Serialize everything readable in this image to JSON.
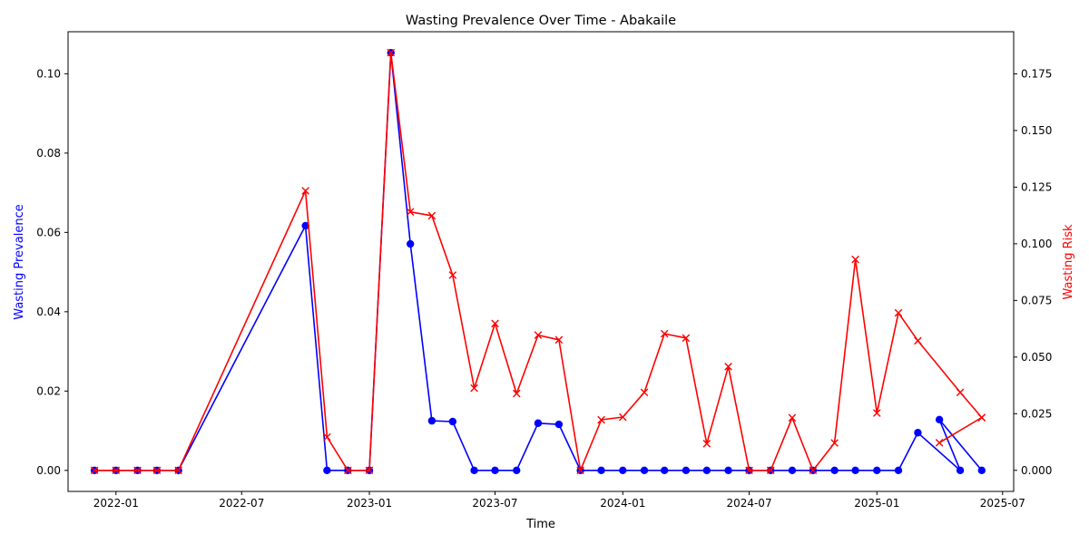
{
  "chart_data": {
    "type": "line",
    "title": "Wasting Prevalence Over Time - Abakaile",
    "xlabel": "Time",
    "ylabel_left": "Wasting Prevalence",
    "ylabel_right": "Wasting Risk",
    "xlim": [
      "2021-10-24",
      "2025-07-17"
    ],
    "ylim_left": [
      -0.0053,
      0.1106
    ],
    "ylim_right": [
      -0.0093,
      0.1936
    ],
    "x_ticks": [
      {
        "date": "2022-01-01",
        "label": "2022-01"
      },
      {
        "date": "2022-07-01",
        "label": "2022-07"
      },
      {
        "date": "2023-01-01",
        "label": "2023-01"
      },
      {
        "date": "2023-07-01",
        "label": "2023-07"
      },
      {
        "date": "2024-01-01",
        "label": "2024-01"
      },
      {
        "date": "2024-07-01",
        "label": "2024-07"
      },
      {
        "date": "2025-01-01",
        "label": "2025-01"
      },
      {
        "date": "2025-07-01",
        "label": "2025-07"
      }
    ],
    "y_ticks_left": [
      {
        "value": 0.0,
        "label": "0.00"
      },
      {
        "value": 0.02,
        "label": "0.02"
      },
      {
        "value": 0.04,
        "label": "0.04"
      },
      {
        "value": 0.06,
        "label": "0.06"
      },
      {
        "value": 0.08,
        "label": "0.08"
      },
      {
        "value": 0.1,
        "label": "0.10"
      }
    ],
    "y_ticks_right": [
      {
        "value": 0.0,
        "label": "0.000"
      },
      {
        "value": 0.025,
        "label": "0.025"
      },
      {
        "value": 0.05,
        "label": "0.050"
      },
      {
        "value": 0.075,
        "label": "0.075"
      },
      {
        "value": 0.1,
        "label": "0.100"
      },
      {
        "value": 0.125,
        "label": "0.125"
      },
      {
        "value": 0.15,
        "label": "0.150"
      },
      {
        "value": 0.175,
        "label": "0.175"
      }
    ],
    "grid": false,
    "legend": "none",
    "series": [
      {
        "axis": "left",
        "color": "#0000ff",
        "marker": "circle",
        "points": [
          [
            "2021-12-01",
            0.0
          ],
          [
            "2022-01-01",
            0.0
          ],
          [
            "2022-02-01",
            0.0
          ],
          [
            "2022-03-01",
            0.0
          ],
          [
            "2022-04-01",
            0.0
          ],
          [
            "2022-10-01",
            0.0617
          ],
          [
            "2022-11-01",
            0.0
          ],
          [
            "2022-12-01",
            0.0
          ],
          [
            "2023-01-01",
            0.0
          ],
          [
            "2023-02-01",
            0.1053
          ],
          [
            "2023-03-01",
            0.0571
          ],
          [
            "2023-04-01",
            0.0125
          ],
          [
            "2023-05-01",
            0.0123
          ],
          [
            "2023-06-01",
            0.0
          ],
          [
            "2023-07-01",
            0.0
          ],
          [
            "2023-08-01",
            0.0
          ],
          [
            "2023-09-01",
            0.0119
          ],
          [
            "2023-10-01",
            0.0116
          ],
          [
            "2023-11-01",
            0.0
          ],
          [
            "2023-12-01",
            0.0
          ],
          [
            "2024-01-01",
            0.0
          ],
          [
            "2024-02-01",
            0.0
          ],
          [
            "2024-03-01",
            0.0
          ],
          [
            "2024-04-01",
            0.0
          ],
          [
            "2024-05-01",
            0.0
          ],
          [
            "2024-06-01",
            0.0
          ],
          [
            "2024-07-01",
            0.0
          ],
          [
            "2024-08-01",
            0.0
          ],
          [
            "2024-09-01",
            0.0
          ],
          [
            "2024-10-01",
            0.0
          ],
          [
            "2024-11-01",
            0.0
          ],
          [
            "2024-12-01",
            0.0
          ],
          [
            "2025-01-01",
            0.0
          ],
          [
            "2025-02-01",
            0.0
          ],
          [
            "2025-03-01",
            0.0095
          ],
          [
            "2025-05-01",
            0.0
          ],
          [
            "2025-04-01",
            0.0128
          ],
          [
            "2025-06-01",
            0.0
          ]
        ]
      },
      {
        "axis": "right",
        "color": "#ff0000",
        "marker": "x",
        "points": [
          [
            "2021-12-01",
            0.0
          ],
          [
            "2022-01-01",
            0.0
          ],
          [
            "2022-02-01",
            0.0
          ],
          [
            "2022-03-01",
            0.0
          ],
          [
            "2022-04-01",
            0.0
          ],
          [
            "2022-10-01",
            0.1234
          ],
          [
            "2022-11-01",
            0.0147
          ],
          [
            "2022-12-01",
            0.0
          ],
          [
            "2023-01-01",
            0.0
          ],
          [
            "2023-02-01",
            0.1844
          ],
          [
            "2023-03-01",
            0.1141
          ],
          [
            "2023-04-01",
            0.1124
          ],
          [
            "2023-05-01",
            0.0862
          ],
          [
            "2023-06-01",
            0.0363
          ],
          [
            "2023-07-01",
            0.0648
          ],
          [
            "2023-08-01",
            0.0339
          ],
          [
            "2023-09-01",
            0.0597
          ],
          [
            "2023-10-01",
            0.0576
          ],
          [
            "2023-11-01",
            0.0
          ],
          [
            "2023-12-01",
            0.0223
          ],
          [
            "2024-01-01",
            0.0235
          ],
          [
            "2024-02-01",
            0.0344
          ],
          [
            "2024-03-01",
            0.0603
          ],
          [
            "2024-04-01",
            0.0584
          ],
          [
            "2024-05-01",
            0.0118
          ],
          [
            "2024-06-01",
            0.0458
          ],
          [
            "2024-07-01",
            0.0
          ],
          [
            "2024-08-01",
            0.0
          ],
          [
            "2024-09-01",
            0.0232
          ],
          [
            "2024-10-01",
            0.0
          ],
          [
            "2024-11-01",
            0.0121
          ],
          [
            "2024-12-01",
            0.0931
          ],
          [
            "2025-01-01",
            0.0253
          ],
          [
            "2025-02-01",
            0.0695
          ],
          [
            "2025-03-01",
            0.0572
          ],
          [
            "2025-05-01",
            0.0344
          ],
          [
            "2025-06-01",
            0.0233
          ],
          [
            "2025-04-01",
            0.0122
          ],
          [
            "2025-06-01",
            0.0233
          ]
        ]
      }
    ]
  }
}
